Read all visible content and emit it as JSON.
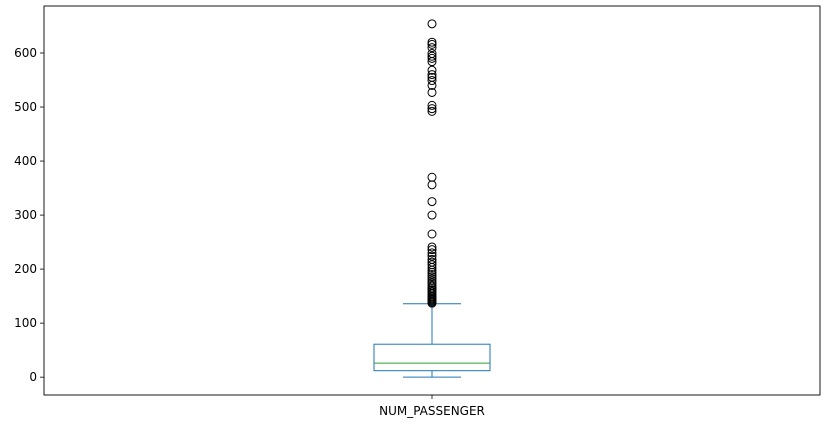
{
  "chart_data": {
    "type": "box",
    "title": "",
    "xlabel": "",
    "ylabel": "",
    "categories": [
      "NUM_PASSENGER"
    ],
    "ylim": [
      -33,
      687
    ],
    "yticks": [
      0,
      100,
      200,
      300,
      400,
      500,
      600
    ],
    "ytick_labels": [
      "0",
      "100",
      "200",
      "300",
      "400",
      "500",
      "600"
    ],
    "grid": false,
    "box": {
      "min": 0,
      "q1": 12,
      "median": 26,
      "q3": 61,
      "max": 136
    },
    "outliers": [
      137,
      139,
      141,
      143,
      145,
      147,
      149,
      152,
      155,
      158,
      161,
      164,
      167,
      170,
      174,
      178,
      182,
      186,
      190,
      194,
      198,
      203,
      208,
      213,
      218,
      224,
      230,
      236,
      241,
      265,
      300,
      325,
      356,
      370,
      492,
      497,
      503,
      527,
      540,
      549,
      555,
      560,
      568,
      584,
      590,
      594,
      599,
      610,
      616,
      620,
      654
    ],
    "colors": {
      "box": "#1f77b4",
      "median": "#2ca02c",
      "outlier": "#000000"
    }
  }
}
